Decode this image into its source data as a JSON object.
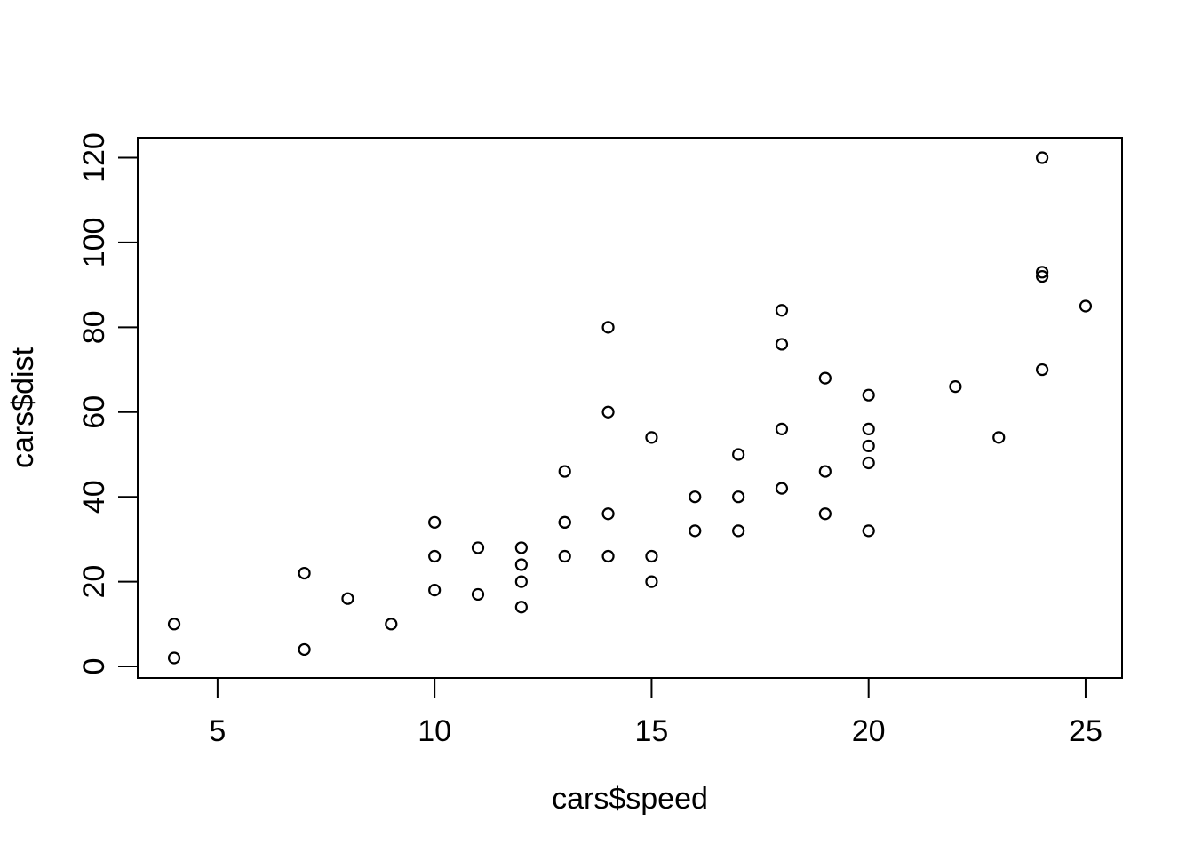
{
  "chart_data": {
    "type": "scatter",
    "title": "",
    "xlabel": "cars$speed",
    "ylabel": "cars$dist",
    "series": [
      {
        "name": "cars",
        "marker": "open-circle",
        "x": [
          4,
          4,
          7,
          7,
          8,
          9,
          10,
          10,
          10,
          11,
          11,
          12,
          12,
          12,
          12,
          13,
          13,
          13,
          13,
          14,
          14,
          14,
          14,
          15,
          15,
          15,
          16,
          16,
          17,
          17,
          17,
          18,
          18,
          18,
          18,
          19,
          19,
          19,
          20,
          20,
          20,
          20,
          20,
          22,
          23,
          24,
          24,
          24,
          24,
          25
        ],
        "y": [
          2,
          10,
          4,
          22,
          16,
          10,
          18,
          26,
          34,
          17,
          28,
          14,
          20,
          24,
          28,
          26,
          34,
          34,
          46,
          26,
          36,
          60,
          80,
          20,
          26,
          54,
          32,
          40,
          32,
          40,
          50,
          42,
          56,
          76,
          84,
          36,
          46,
          68,
          32,
          48,
          52,
          56,
          64,
          66,
          54,
          70,
          92,
          93,
          120,
          85
        ]
      }
    ],
    "x_ticks": [
      5,
      10,
      15,
      20,
      25
    ],
    "y_ticks": [
      0,
      20,
      40,
      60,
      80,
      100,
      120
    ],
    "xlim": [
      3.16,
      25.84
    ],
    "ylim": [
      -2.72,
      124.72
    ],
    "grid": false,
    "legend": null,
    "colors": {
      "background": "#ffffff",
      "axis": "#000000",
      "point_stroke": "#000000",
      "text": "#000000"
    }
  }
}
